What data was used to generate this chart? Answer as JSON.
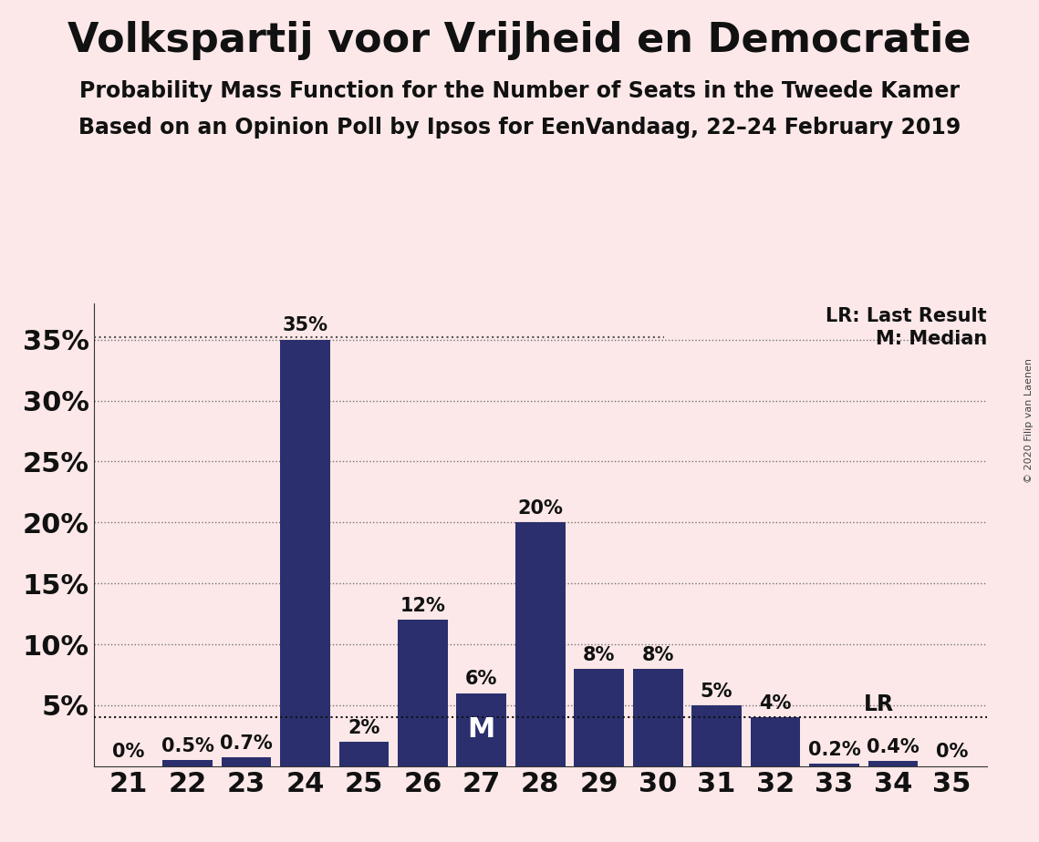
{
  "title": "Volkspartij voor Vrijheid en Democratie",
  "subtitle1": "Probability Mass Function for the Number of Seats in the Tweede Kamer",
  "subtitle2": "Based on an Opinion Poll by Ipsos for EenVandaag, 22–24 February 2019",
  "copyright": "© 2020 Filip van Laenen",
  "categories": [
    21,
    22,
    23,
    24,
    25,
    26,
    27,
    28,
    29,
    30,
    31,
    32,
    33,
    34,
    35
  ],
  "values": [
    0.0,
    0.5,
    0.7,
    35.0,
    2.0,
    12.0,
    6.0,
    20.0,
    8.0,
    8.0,
    5.0,
    4.0,
    0.2,
    0.4,
    0.0
  ],
  "labels": [
    "0%",
    "0.5%",
    "0.7%",
    "35%",
    "2%",
    "12%",
    "6%",
    "20%",
    "8%",
    "8%",
    "5%",
    "4%",
    "0.2%",
    "0.4%",
    "0%"
  ],
  "bar_color": "#2b2f6e",
  "background_color": "#fce8e8",
  "lr_seat": 33,
  "lr_value": 4.0,
  "median_seat": 27,
  "ylim": [
    0,
    38
  ],
  "yticks": [
    5,
    10,
    15,
    20,
    25,
    30,
    35
  ],
  "ytick_labels": [
    "5%",
    "10%",
    "15%",
    "20%",
    "25%",
    "30%",
    "35%"
  ],
  "legend_lr_label": "LR: Last Result",
  "legend_m_label": "M: Median",
  "title_fontsize": 32,
  "subtitle_fontsize": 17,
  "axis_fontsize": 22,
  "bar_label_fontsize": 15,
  "dotted_color": "#555555",
  "lr_line_color": "#111111"
}
